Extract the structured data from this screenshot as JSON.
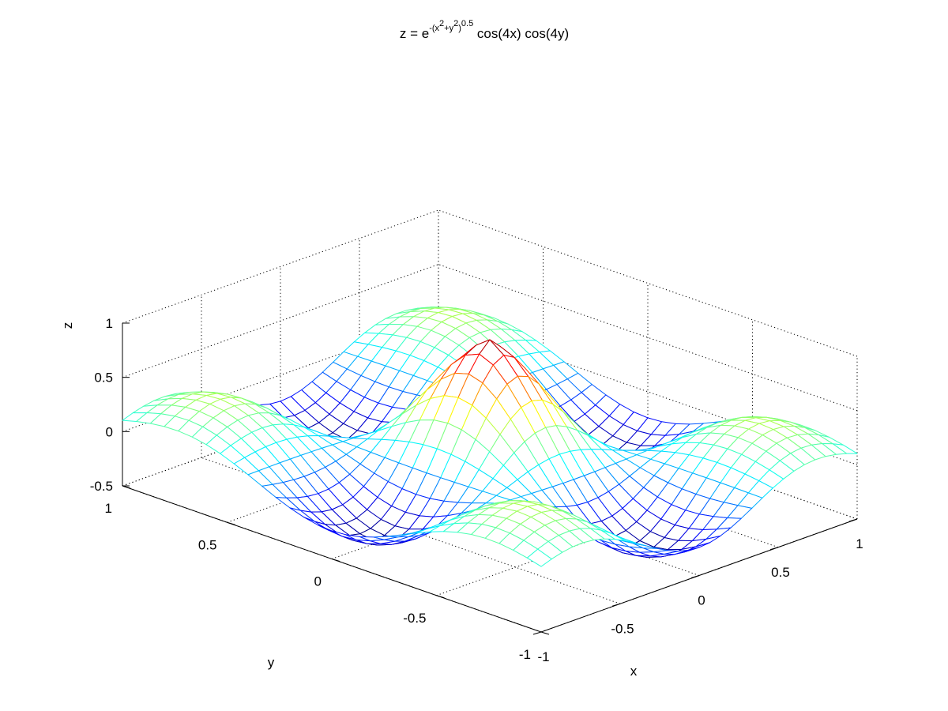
{
  "chart_data": {
    "type": "surface",
    "title": {
      "prefix": "z = e",
      "exp_base": "-(x",
      "exp_sup1": "2",
      "exp_plus": "+y",
      "exp_sup2": "2",
      "exp_close": ")",
      "exp_sup3": "0.5",
      "suffix": " cos(4x) cos(4y)"
    },
    "xlabel": "x",
    "ylabel": "y",
    "zlabel": "z",
    "xlim": [
      -1,
      1
    ],
    "ylim": [
      -1,
      1
    ],
    "zlim": [
      -0.5,
      1
    ],
    "x_ticks": [
      -1,
      -0.5,
      0,
      0.5,
      1
    ],
    "y_ticks": [
      -1,
      -0.5,
      0,
      0.5,
      1
    ],
    "z_ticks": [
      -0.5,
      0,
      0.5,
      1
    ],
    "x_tick_labels": [
      "-1",
      "-0.5",
      "0",
      "0.5",
      "1"
    ],
    "y_tick_labels": [
      "-1",
      "-0.5",
      "0",
      "0.5",
      "1"
    ],
    "z_tick_labels": [
      "-0.5",
      "0",
      "0.5",
      "1"
    ],
    "function": "exp(-(x^2+y^2)^0.5) * cos(4x) * cos(4y)",
    "grid_points_per_axis": 31,
    "grid": true,
    "style": "mesh",
    "colormap": "jet"
  }
}
